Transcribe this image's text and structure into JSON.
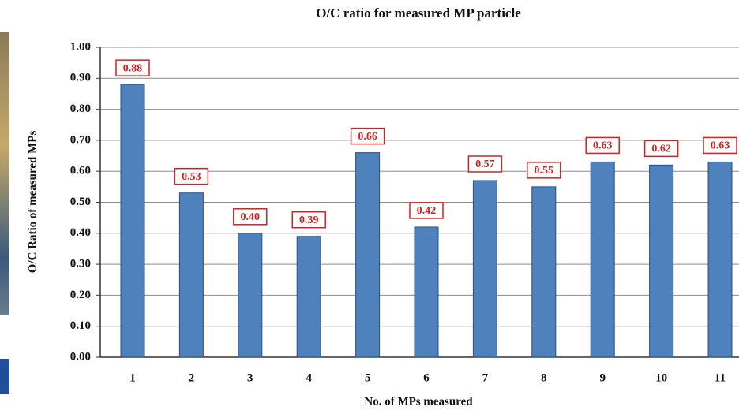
{
  "chart_data": {
    "type": "bar",
    "title": "O/C ratio for measured MP particle",
    "x_label": "No. of MPs measured",
    "y_label": "O/C Ratio of measured MPs",
    "categories": [
      "1",
      "2",
      "3",
      "4",
      "5",
      "6",
      "7",
      "8",
      "9",
      "10",
      "11"
    ],
    "values": [
      0.88,
      0.53,
      0.4,
      0.39,
      0.66,
      0.42,
      0.57,
      0.55,
      0.63,
      0.62,
      0.63
    ],
    "value_labels": [
      "0.88",
      "0.53",
      "0.40",
      "0.39",
      "0.66",
      "0.42",
      "0.57",
      "0.55",
      "0.63",
      "0.62",
      "0.63"
    ],
    "color": "#4f81bd",
    "ylim": [
      0,
      1
    ],
    "yticks": [
      {
        "value": 0,
        "label": "0.00"
      },
      {
        "value": 0.1,
        "label": "0.10"
      },
      {
        "value": 0.2,
        "label": "0.20"
      },
      {
        "value": 0.3,
        "label": "0.30"
      },
      {
        "value": 0.4,
        "label": "0.40"
      },
      {
        "value": 0.5,
        "label": "0.50"
      },
      {
        "value": 0.6,
        "label": "0.60"
      },
      {
        "value": 0.7,
        "label": "0.70"
      },
      {
        "value": 0.8,
        "label": "0.80"
      },
      {
        "value": 0.9,
        "label": "0.90"
      },
      {
        "value": 1,
        "label": "1.00"
      }
    ],
    "grid": true
  }
}
